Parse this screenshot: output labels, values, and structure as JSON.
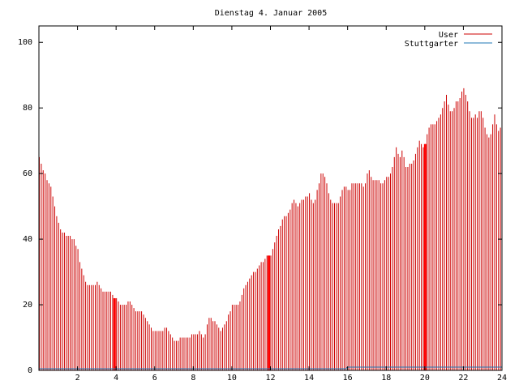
{
  "chart_data": {
    "type": "bar",
    "title": "Dienstag 4. Januar 2005",
    "xlabel": "",
    "ylabel": "",
    "xlim": [
      0,
      24
    ],
    "ylim": [
      0,
      105
    ],
    "x_ticks": [
      2,
      4,
      6,
      8,
      10,
      12,
      14,
      16,
      18,
      20,
      22,
      24
    ],
    "x_tick_labels": [
      "2",
      "4",
      "6",
      "8",
      "10",
      "12",
      "14",
      "16",
      "18",
      "20",
      "22",
      "24"
    ],
    "y_ticks": [
      0,
      20,
      40,
      60,
      80,
      100
    ],
    "y_tick_labels": [
      "0",
      "20",
      "40",
      "60",
      "80",
      "100"
    ],
    "grid": false,
    "legend_position": "top-right",
    "colors": {
      "user": "#cc0000",
      "stuttgarter": "#1f77b4",
      "axis": "#000000"
    },
    "series": [
      {
        "name": "User",
        "type": "bar",
        "points": [
          [
            0.0,
            65
          ],
          [
            0.1,
            63
          ],
          [
            0.2,
            61
          ],
          [
            0.3,
            60
          ],
          [
            0.4,
            58
          ],
          [
            0.5,
            57
          ],
          [
            0.6,
            56
          ],
          [
            0.7,
            53
          ],
          [
            0.8,
            50
          ],
          [
            0.9,
            47
          ],
          [
            1.0,
            45
          ],
          [
            1.1,
            43
          ],
          [
            1.2,
            42
          ],
          [
            1.3,
            42
          ],
          [
            1.4,
            41
          ],
          [
            1.5,
            41
          ],
          [
            1.6,
            41
          ],
          [
            1.7,
            40
          ],
          [
            1.8,
            40
          ],
          [
            1.9,
            38
          ],
          [
            2.0,
            37
          ],
          [
            2.1,
            33
          ],
          [
            2.2,
            31
          ],
          [
            2.3,
            29
          ],
          [
            2.4,
            27
          ],
          [
            2.5,
            26
          ],
          [
            2.6,
            26
          ],
          [
            2.7,
            26
          ],
          [
            2.8,
            26
          ],
          [
            2.9,
            26
          ],
          [
            3.0,
            27
          ],
          [
            3.1,
            26
          ],
          [
            3.2,
            25
          ],
          [
            3.3,
            24
          ],
          [
            3.4,
            24
          ],
          [
            3.5,
            24
          ],
          [
            3.6,
            24
          ],
          [
            3.7,
            24
          ],
          [
            3.8,
            23
          ],
          [
            3.9,
            22
          ],
          [
            4.0,
            22
          ],
          [
            4.1,
            21
          ],
          [
            4.2,
            20
          ],
          [
            4.3,
            20
          ],
          [
            4.4,
            20
          ],
          [
            4.5,
            20
          ],
          [
            4.6,
            21
          ],
          [
            4.7,
            21
          ],
          [
            4.8,
            20
          ],
          [
            4.9,
            19
          ],
          [
            5.0,
            18
          ],
          [
            5.1,
            18
          ],
          [
            5.2,
            18
          ],
          [
            5.3,
            18
          ],
          [
            5.4,
            17
          ],
          [
            5.5,
            16
          ],
          [
            5.6,
            15
          ],
          [
            5.7,
            14
          ],
          [
            5.8,
            13
          ],
          [
            5.9,
            12
          ],
          [
            6.0,
            12
          ],
          [
            6.1,
            12
          ],
          [
            6.2,
            12
          ],
          [
            6.3,
            12
          ],
          [
            6.4,
            12
          ],
          [
            6.5,
            13
          ],
          [
            6.6,
            13
          ],
          [
            6.7,
            12
          ],
          [
            6.8,
            11
          ],
          [
            6.9,
            10
          ],
          [
            7.0,
            9
          ],
          [
            7.1,
            9
          ],
          [
            7.2,
            9
          ],
          [
            7.3,
            10
          ],
          [
            7.4,
            10
          ],
          [
            7.5,
            10
          ],
          [
            7.6,
            10
          ],
          [
            7.7,
            10
          ],
          [
            7.8,
            10
          ],
          [
            7.9,
            11
          ],
          [
            8.0,
            11
          ],
          [
            8.1,
            11
          ],
          [
            8.2,
            11
          ],
          [
            8.3,
            12
          ],
          [
            8.4,
            11
          ],
          [
            8.5,
            10
          ],
          [
            8.6,
            11
          ],
          [
            8.7,
            14
          ],
          [
            8.8,
            16
          ],
          [
            8.9,
            16
          ],
          [
            9.0,
            15
          ],
          [
            9.1,
            15
          ],
          [
            9.2,
            14
          ],
          [
            9.3,
            13
          ],
          [
            9.4,
            12
          ],
          [
            9.5,
            13
          ],
          [
            9.6,
            14
          ],
          [
            9.7,
            15
          ],
          [
            9.8,
            17
          ],
          [
            9.9,
            18
          ],
          [
            10.0,
            20
          ],
          [
            10.1,
            20
          ],
          [
            10.2,
            20
          ],
          [
            10.3,
            20
          ],
          [
            10.4,
            21
          ],
          [
            10.5,
            23
          ],
          [
            10.6,
            25
          ],
          [
            10.7,
            26
          ],
          [
            10.8,
            27
          ],
          [
            10.9,
            28
          ],
          [
            11.0,
            29
          ],
          [
            11.1,
            30
          ],
          [
            11.2,
            30
          ],
          [
            11.3,
            31
          ],
          [
            11.4,
            32
          ],
          [
            11.5,
            33
          ],
          [
            11.6,
            33
          ],
          [
            11.7,
            34
          ],
          [
            11.8,
            35
          ],
          [
            11.9,
            35
          ],
          [
            12.0,
            35
          ],
          [
            12.1,
            37
          ],
          [
            12.2,
            39
          ],
          [
            12.3,
            41
          ],
          [
            12.4,
            43
          ],
          [
            12.5,
            44
          ],
          [
            12.6,
            46
          ],
          [
            12.7,
            47
          ],
          [
            12.8,
            47
          ],
          [
            12.9,
            48
          ],
          [
            13.0,
            49
          ],
          [
            13.1,
            51
          ],
          [
            13.2,
            52
          ],
          [
            13.3,
            51
          ],
          [
            13.4,
            50
          ],
          [
            13.5,
            51
          ],
          [
            13.6,
            52
          ],
          [
            13.7,
            52
          ],
          [
            13.8,
            53
          ],
          [
            13.9,
            53
          ],
          [
            14.0,
            54
          ],
          [
            14.1,
            52
          ],
          [
            14.2,
            51
          ],
          [
            14.3,
            52
          ],
          [
            14.4,
            55
          ],
          [
            14.5,
            57
          ],
          [
            14.6,
            60
          ],
          [
            14.7,
            60
          ],
          [
            14.8,
            59
          ],
          [
            14.9,
            57
          ],
          [
            15.0,
            54
          ],
          [
            15.1,
            52
          ],
          [
            15.2,
            51
          ],
          [
            15.3,
            51
          ],
          [
            15.4,
            51
          ],
          [
            15.5,
            51
          ],
          [
            15.6,
            53
          ],
          [
            15.7,
            55
          ],
          [
            15.8,
            56
          ],
          [
            15.9,
            56
          ],
          [
            16.0,
            55
          ],
          [
            16.1,
            55
          ],
          [
            16.2,
            57
          ],
          [
            16.3,
            57
          ],
          [
            16.4,
            57
          ],
          [
            16.5,
            57
          ],
          [
            16.6,
            57
          ],
          [
            16.7,
            57
          ],
          [
            16.8,
            56
          ],
          [
            16.9,
            57
          ],
          [
            17.0,
            60
          ],
          [
            17.1,
            61
          ],
          [
            17.2,
            59
          ],
          [
            17.3,
            58
          ],
          [
            17.4,
            58
          ],
          [
            17.5,
            58
          ],
          [
            17.6,
            58
          ],
          [
            17.7,
            57
          ],
          [
            17.8,
            57
          ],
          [
            17.9,
            58
          ],
          [
            18.0,
            59
          ],
          [
            18.1,
            59
          ],
          [
            18.2,
            60
          ],
          [
            18.3,
            62
          ],
          [
            18.4,
            65
          ],
          [
            18.5,
            68
          ],
          [
            18.6,
            66
          ],
          [
            18.7,
            65
          ],
          [
            18.8,
            67
          ],
          [
            18.9,
            65
          ],
          [
            19.0,
            62
          ],
          [
            19.1,
            62
          ],
          [
            19.2,
            63
          ],
          [
            19.3,
            63
          ],
          [
            19.4,
            64
          ],
          [
            19.5,
            66
          ],
          [
            19.6,
            68
          ],
          [
            19.7,
            70
          ],
          [
            19.8,
            69
          ],
          [
            19.9,
            68
          ],
          [
            20.0,
            69
          ],
          [
            20.1,
            72
          ],
          [
            20.2,
            74
          ],
          [
            20.3,
            75
          ],
          [
            20.4,
            75
          ],
          [
            20.5,
            75
          ],
          [
            20.6,
            76
          ],
          [
            20.7,
            77
          ],
          [
            20.8,
            78
          ],
          [
            20.9,
            80
          ],
          [
            21.0,
            82
          ],
          [
            21.1,
            84
          ],
          [
            21.2,
            81
          ],
          [
            21.3,
            79
          ],
          [
            21.4,
            79
          ],
          [
            21.5,
            80
          ],
          [
            21.6,
            82
          ],
          [
            21.7,
            82
          ],
          [
            21.8,
            83
          ],
          [
            21.9,
            85
          ],
          [
            22.0,
            86
          ],
          [
            22.1,
            84
          ],
          [
            22.2,
            82
          ],
          [
            22.3,
            79
          ],
          [
            22.4,
            77
          ],
          [
            22.5,
            77
          ],
          [
            22.6,
            78
          ],
          [
            22.7,
            77
          ],
          [
            22.8,
            79
          ],
          [
            22.9,
            79
          ],
          [
            23.0,
            77
          ],
          [
            23.1,
            74
          ],
          [
            23.2,
            72
          ],
          [
            23.3,
            71
          ],
          [
            23.4,
            72
          ],
          [
            23.5,
            75
          ],
          [
            23.6,
            78
          ],
          [
            23.7,
            75
          ],
          [
            23.8,
            73
          ],
          [
            23.9,
            74
          ]
        ],
        "highlighted_bars": [
          {
            "x": 3.9,
            "y": 22
          },
          {
            "x": 11.9,
            "y": 35
          },
          {
            "x": 20.0,
            "y": 69
          }
        ]
      },
      {
        "name": "Stuttgarter",
        "type": "line",
        "points": [
          [
            0,
            0.5
          ],
          [
            5,
            0.5
          ],
          [
            15.9,
            0.5
          ],
          [
            16.0,
            1
          ],
          [
            24,
            1
          ]
        ]
      }
    ]
  }
}
